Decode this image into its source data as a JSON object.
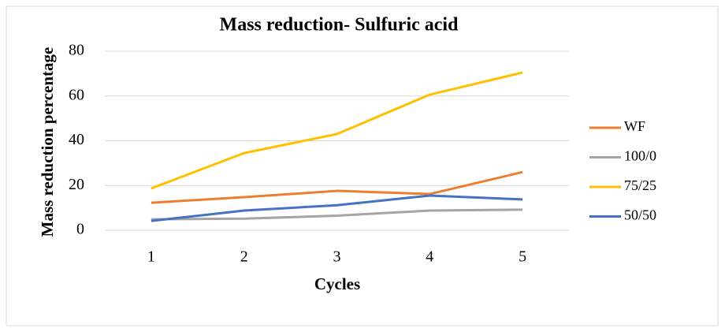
{
  "chart_data": {
    "type": "line",
    "title": "Mass reduction- Sulfuric acid",
    "x_label": "Cycles",
    "y_label": "Mass reduction percentage",
    "categories": [
      "1",
      "2",
      "3",
      "4",
      "5"
    ],
    "series": [
      {
        "name": "WF",
        "color": "#ed7d31",
        "values": [
          12.3,
          14.8,
          17.6,
          16.2,
          26
        ]
      },
      {
        "name": "100/0",
        "color": "#a5a5a5",
        "values": [
          4.9,
          5.2,
          6.5,
          8.8,
          9.2
        ]
      },
      {
        "name": "75/25",
        "color": "#ffc000",
        "values": [
          18.7,
          34.5,
          43,
          60.6,
          70.5
        ]
      },
      {
        "name": "50/50",
        "color": "#4472c4",
        "values": [
          4.2,
          8.8,
          11.2,
          15.5,
          13.8
        ]
      }
    ],
    "ylim": [
      0,
      80
    ],
    "yticks": [
      0,
      20,
      40,
      60,
      80
    ],
    "grid": true,
    "legend": "right"
  }
}
